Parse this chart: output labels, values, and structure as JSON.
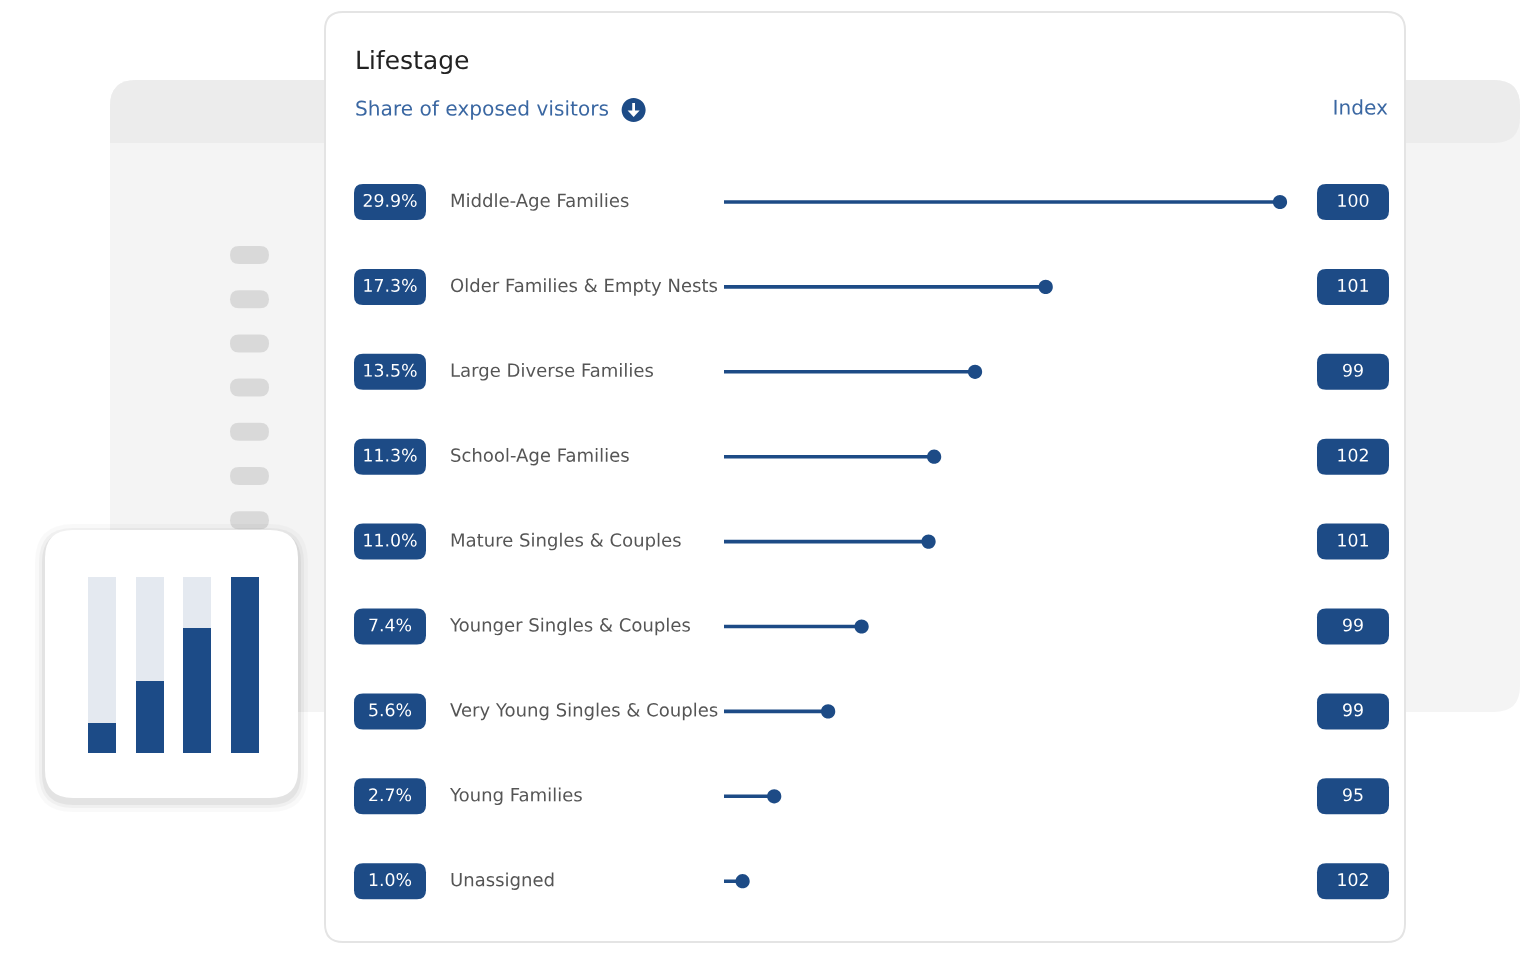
{
  "chart_data": {
    "type": "lollipop",
    "orientation": "horizontal",
    "title": "Lifestage",
    "categories": [
      "Middle-Age Families",
      "Older Families & Empty Nests",
      "Large Diverse Families",
      "School-Age Families",
      "Mature Singles & Couples",
      "Younger Singles & Couples",
      "Very Young Singles & Couples",
      "Young Families",
      "Unassigned"
    ],
    "y2label": "Index",
    "y2_categories": [
      "100",
      "101",
      "99",
      "102",
      "101",
      "99",
      "99",
      "95",
      "102"
    ],
    "series": [
      {
        "name": "Share of exposed visitors",
        "color": "#1d4b86",
        "values": [
          29.9,
          17.3,
          13.5,
          11.3,
          11.0,
          7.4,
          5.6,
          2.7,
          1.0
        ],
        "value_labels": [
          "29.9%",
          "17.3%",
          "13.5%",
          "11.3%",
          "11.0%",
          "7.4%",
          "5.6%",
          "2.7%",
          "1.0%"
        ]
      }
    ],
    "marker": "circle",
    "legend": "top",
    "grid": false,
    "tick_labels": false
  }
}
